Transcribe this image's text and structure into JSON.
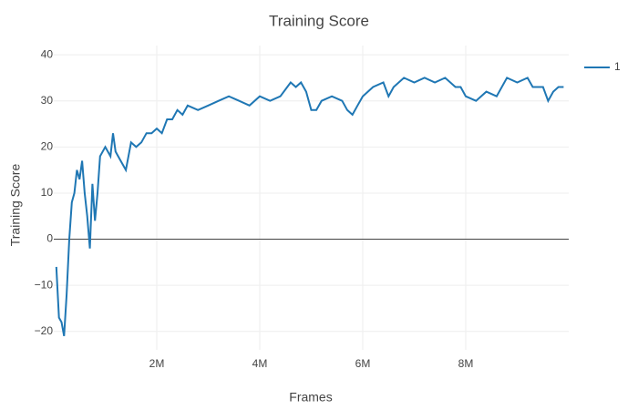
{
  "chart_data": {
    "type": "line",
    "title": "Training Score",
    "x_label": "Frames",
    "y_label": "Training Score",
    "x": [
      50000,
      100000,
      150000,
      200000,
      250000,
      300000,
      350000,
      400000,
      450000,
      500000,
      550000,
      600000,
      650000,
      700000,
      750000,
      800000,
      850000,
      900000,
      1000000,
      1100000,
      1150000,
      1200000,
      1300000,
      1400000,
      1500000,
      1600000,
      1700000,
      1800000,
      1900000,
      2000000,
      2100000,
      2200000,
      2300000,
      2400000,
      2500000,
      2600000,
      2800000,
      3000000,
      3200000,
      3400000,
      3600000,
      3800000,
      4000000,
      4200000,
      4400000,
      4600000,
      4700000,
      4800000,
      4900000,
      5000000,
      5100000,
      5200000,
      5400000,
      5600000,
      5700000,
      5800000,
      5900000,
      6000000,
      6200000,
      6400000,
      6500000,
      6600000,
      6800000,
      7000000,
      7200000,
      7400000,
      7600000,
      7800000,
      7900000,
      8000000,
      8200000,
      8400000,
      8600000,
      8800000,
      9000000,
      9200000,
      9300000,
      9500000,
      9600000,
      9700000,
      9800000,
      9900000
    ],
    "series": [
      {
        "name": "1",
        "color": "#1f77b4",
        "values": [
          -6,
          -17,
          -18,
          -21,
          -12,
          0,
          8,
          10,
          15,
          13,
          17,
          10,
          5,
          -2,
          12,
          4,
          10,
          18,
          20,
          18,
          23,
          19,
          17,
          15,
          21,
          20,
          21,
          23,
          23,
          24,
          23,
          26,
          26,
          28,
          27,
          29,
          28,
          29,
          30,
          31,
          30,
          29,
          31,
          30,
          31,
          34,
          33,
          34,
          32,
          28,
          28,
          30,
          31,
          30,
          28,
          27,
          29,
          31,
          33,
          34,
          31,
          33,
          35,
          34,
          35,
          34,
          35,
          33,
          33,
          31,
          30,
          32,
          31,
          35,
          34,
          35,
          33,
          33,
          30,
          32,
          33,
          33
        ]
      }
    ],
    "xlim": [
      0,
      10000000
    ],
    "ylim": [
      -24,
      42
    ],
    "xticks": [
      {
        "value": 2000000,
        "label": "2M"
      },
      {
        "value": 4000000,
        "label": "4M"
      },
      {
        "value": 6000000,
        "label": "6M"
      },
      {
        "value": 8000000,
        "label": "8M"
      }
    ],
    "yticks": [
      {
        "value": -20,
        "label": "−20"
      },
      {
        "value": -10,
        "label": "−10"
      },
      0,
      10,
      20,
      30,
      40
    ],
    "grid": true,
    "legend": "right"
  }
}
